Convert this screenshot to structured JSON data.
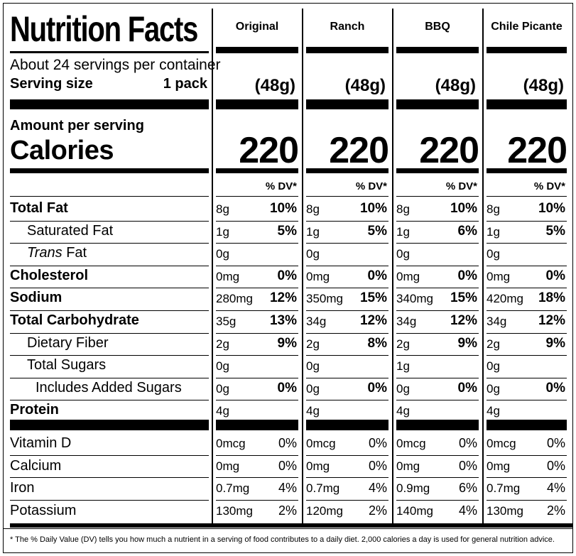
{
  "title": "Nutrition Facts",
  "servings_per_container": "About 24 servings per container",
  "serving_size_label": "Serving size",
  "serving_size_value": "1 pack",
  "amount_per_serving": "Amount per serving",
  "calories_label": "Calories",
  "dv_header": "% DV*",
  "products": [
    {
      "name": "Original",
      "serving": "(48g)",
      "calories": "220"
    },
    {
      "name": "Ranch",
      "serving": "(48g)",
      "calories": "220"
    },
    {
      "name": "BBQ",
      "serving": "(48g)",
      "calories": "220"
    },
    {
      "name": "Chile Picante",
      "serving": "(48g)",
      "calories": "220"
    }
  ],
  "nutrients": [
    {
      "label": "Total Fat",
      "bold": true,
      "indent": 0,
      "values": [
        [
          "8g",
          "10%"
        ],
        [
          "8g",
          "10%"
        ],
        [
          "8g",
          "10%"
        ],
        [
          "8g",
          "10%"
        ]
      ]
    },
    {
      "label": "Saturated Fat",
      "bold": false,
      "indent": 1,
      "values": [
        [
          "1g",
          "5%"
        ],
        [
          "1g",
          "5%"
        ],
        [
          "1g",
          "6%"
        ],
        [
          "1g",
          "5%"
        ]
      ]
    },
    {
      "label_italic": "Trans",
      "label": " Fat",
      "bold": false,
      "indent": 1,
      "values": [
        [
          "0g",
          ""
        ],
        [
          "0g",
          ""
        ],
        [
          "0g",
          ""
        ],
        [
          "0g",
          ""
        ]
      ]
    },
    {
      "label": "Cholesterol",
      "bold": true,
      "indent": 0,
      "values": [
        [
          "0mg",
          "0%"
        ],
        [
          "0mg",
          "0%"
        ],
        [
          "0mg",
          "0%"
        ],
        [
          "0mg",
          "0%"
        ]
      ]
    },
    {
      "label": "Sodium",
      "bold": true,
      "indent": 0,
      "values": [
        [
          "280mg",
          "12%"
        ],
        [
          "350mg",
          "15%"
        ],
        [
          "340mg",
          "15%"
        ],
        [
          "420mg",
          "18%"
        ]
      ]
    },
    {
      "label": "Total Carbohydrate",
      "bold": true,
      "indent": 0,
      "values": [
        [
          "35g",
          "13%"
        ],
        [
          "34g",
          "12%"
        ],
        [
          "34g",
          "12%"
        ],
        [
          "34g",
          "12%"
        ]
      ]
    },
    {
      "label": "Dietary Fiber",
      "bold": false,
      "indent": 1,
      "values": [
        [
          "2g",
          "9%"
        ],
        [
          "2g",
          "8%"
        ],
        [
          "2g",
          "9%"
        ],
        [
          "2g",
          "9%"
        ]
      ]
    },
    {
      "label": "Total Sugars",
      "bold": false,
      "indent": 1,
      "values": [
        [
          "0g",
          ""
        ],
        [
          "0g",
          ""
        ],
        [
          "1g",
          ""
        ],
        [
          "0g",
          ""
        ]
      ]
    },
    {
      "label": "Includes Added Sugars",
      "bold": false,
      "indent": 2,
      "values": [
        [
          "0g",
          "0%"
        ],
        [
          "0g",
          "0%"
        ],
        [
          "0g",
          "0%"
        ],
        [
          "0g",
          "0%"
        ]
      ]
    },
    {
      "label": "Protein",
      "bold": true,
      "indent": 0,
      "values": [
        [
          "4g",
          ""
        ],
        [
          "4g",
          ""
        ],
        [
          "4g",
          ""
        ],
        [
          "4g",
          ""
        ]
      ]
    }
  ],
  "vitamins": [
    {
      "label": "Vitamin D",
      "values": [
        [
          "0mcg",
          "0%"
        ],
        [
          "0mcg",
          "0%"
        ],
        [
          "0mcg",
          "0%"
        ],
        [
          "0mcg",
          "0%"
        ]
      ]
    },
    {
      "label": "Calcium",
      "values": [
        [
          "0mg",
          "0%"
        ],
        [
          "0mg",
          "0%"
        ],
        [
          "0mg",
          "0%"
        ],
        [
          "0mg",
          "0%"
        ]
      ]
    },
    {
      "label": "Iron",
      "values": [
        [
          "0.7mg",
          "4%"
        ],
        [
          "0.7mg",
          "4%"
        ],
        [
          "0.9mg",
          "6%"
        ],
        [
          "0.7mg",
          "4%"
        ]
      ]
    },
    {
      "label": "Potassium",
      "values": [
        [
          "130mg",
          "2%"
        ],
        [
          "120mg",
          "2%"
        ],
        [
          "140mg",
          "4%"
        ],
        [
          "130mg",
          "2%"
        ]
      ]
    }
  ],
  "footnote": "* The % Daily Value (DV) tells you how much a nutrient in a serving of food contributes to a daily diet. 2,000 calories a day is used for general nutrition advice."
}
